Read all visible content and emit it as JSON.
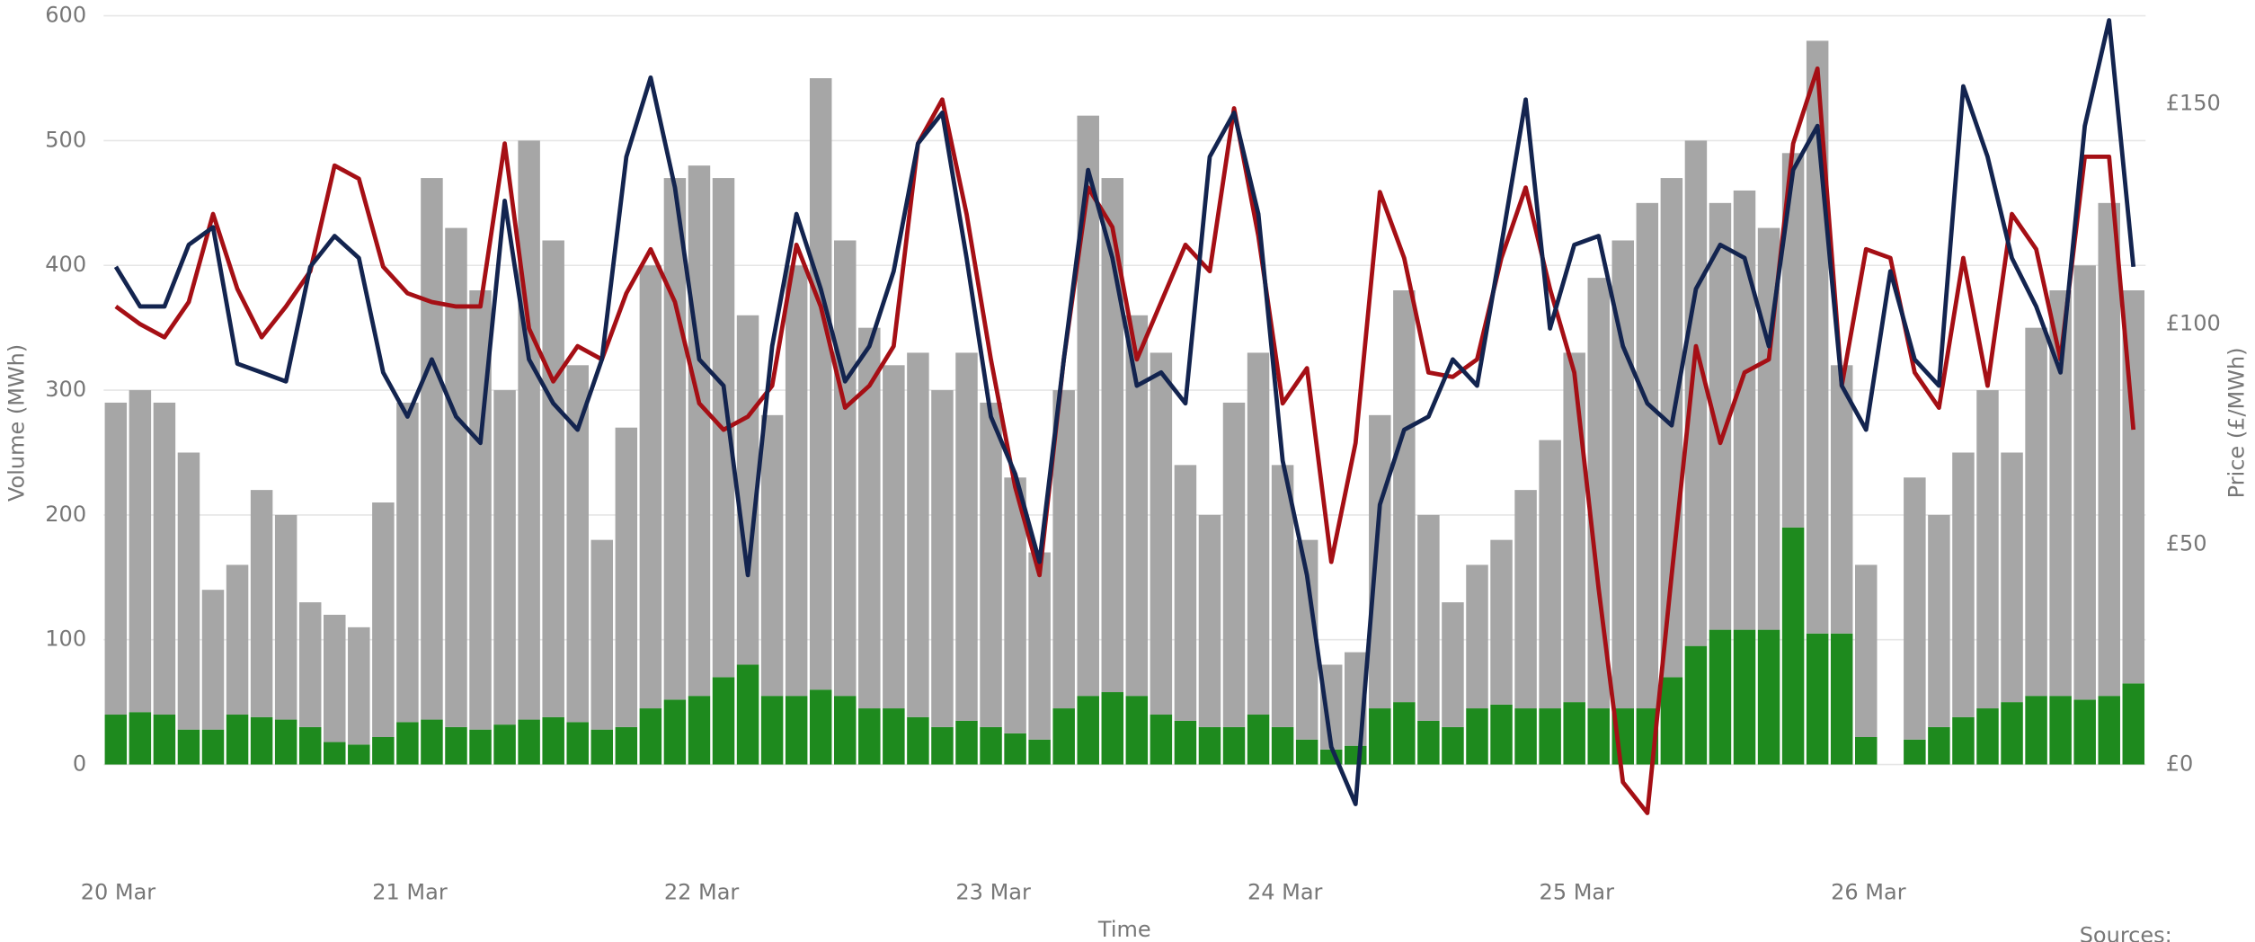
{
  "chart_data": {
    "type": "bar",
    "stacked": true,
    "x_label": "Time",
    "y_label": "Volume (MWh)",
    "y2_label": "Price (£/MWh)",
    "note": "Sources:",
    "categories": [
      "20 Mar",
      null,
      null,
      null,
      null,
      null,
      null,
      null,
      null,
      null,
      null,
      null,
      "21 Mar",
      null,
      null,
      null,
      null,
      null,
      null,
      null,
      null,
      null,
      null,
      null,
      "22 Mar",
      null,
      null,
      null,
      null,
      null,
      null,
      null,
      null,
      null,
      null,
      null,
      "23 Mar",
      null,
      null,
      null,
      null,
      null,
      null,
      null,
      null,
      null,
      null,
      null,
      "24 Mar",
      null,
      null,
      null,
      null,
      null,
      null,
      null,
      null,
      null,
      null,
      null,
      "25 Mar",
      null,
      null,
      null,
      null,
      null,
      null,
      null,
      null,
      null,
      null,
      null,
      "26 Mar",
      null,
      null,
      null,
      null,
      null,
      null,
      null,
      null,
      null,
      null,
      null
    ],
    "ylim": [
      -80,
      600
    ],
    "yticks": [
      0,
      100,
      200,
      300,
      400,
      500,
      600
    ],
    "y2lim": [
      -22.67,
      170
    ],
    "y2ticks": [
      {
        "value": 0,
        "label": "£0"
      },
      {
        "value": 50,
        "label": "£50"
      },
      {
        "value": 100,
        "label": "£100"
      },
      {
        "value": 150,
        "label": "£150"
      }
    ],
    "grid": true,
    "series": [
      {
        "type": "bar",
        "color": "#1e8a1e",
        "values": [
          40,
          42,
          40,
          28,
          28,
          40,
          38,
          36,
          30,
          18,
          16,
          22,
          34,
          36,
          30,
          28,
          32,
          36,
          38,
          34,
          28,
          30,
          45,
          52,
          55,
          70,
          80,
          55,
          55,
          60,
          55,
          45,
          45,
          38,
          30,
          35,
          30,
          25,
          20,
          45,
          55,
          58,
          55,
          40,
          35,
          30,
          30,
          40,
          30,
          20,
          12,
          15,
          45,
          50,
          35,
          30,
          45,
          48,
          45,
          45,
          50,
          45,
          45,
          45,
          70,
          95,
          108,
          108,
          108,
          190,
          105,
          105,
          22,
          null,
          20,
          30,
          38,
          45,
          50,
          55,
          55,
          52,
          55,
          65
        ]
      },
      {
        "type": "bar",
        "color": "#a6a6a6",
        "values": [
          250,
          258,
          250,
          222,
          112,
          120,
          182,
          164,
          100,
          102,
          94,
          188,
          256,
          434,
          400,
          352,
          268,
          464,
          382,
          286,
          152,
          240,
          355,
          418,
          425,
          400,
          280,
          225,
          345,
          490,
          365,
          305,
          275,
          292,
          270,
          295,
          260,
          205,
          150,
          255,
          465,
          412,
          305,
          290,
          205,
          170,
          260,
          290,
          210,
          160,
          68,
          75,
          235,
          330,
          165,
          100,
          115,
          132,
          175,
          215,
          280,
          345,
          375,
          405,
          400,
          405,
          342,
          352,
          322,
          300,
          475,
          215,
          138,
          null,
          210,
          170,
          212,
          255,
          200,
          295,
          325,
          348,
          395,
          315
        ]
      },
      {
        "type": "line",
        "axis": "y2",
        "color": "#a50f15",
        "values": [
          104,
          100,
          97,
          105,
          125,
          108,
          97,
          104,
          112,
          136,
          133,
          113,
          107,
          105,
          104,
          104,
          141,
          99,
          87,
          95,
          92,
          107,
          117,
          105,
          82,
          76,
          79,
          86,
          118,
          104,
          81,
          86,
          95,
          141,
          151,
          125,
          92,
          63,
          43,
          92,
          131,
          122,
          92,
          105,
          118,
          112,
          149,
          120,
          82,
          90,
          46,
          73,
          130,
          115,
          89,
          88,
          92,
          115,
          131,
          108,
          89,
          40,
          -4,
          -11,
          43,
          95,
          73,
          89,
          92,
          141,
          158,
          86,
          117,
          115,
          89,
          81,
          115,
          86,
          125,
          117,
          92,
          138,
          138,
          76
        ]
      },
      {
        "type": "line",
        "axis": "y2",
        "color": "#13244f",
        "values": [
          113,
          104,
          104,
          118,
          122,
          91,
          89,
          87,
          113,
          120,
          115,
          89,
          79,
          92,
          79,
          73,
          128,
          92,
          82,
          76,
          92,
          138,
          156,
          131,
          92,
          86,
          43,
          95,
          125,
          108,
          87,
          95,
          112,
          141,
          148,
          115,
          79,
          66,
          46,
          92,
          135,
          115,
          86,
          89,
          82,
          138,
          148,
          125,
          69,
          43,
          4,
          -9,
          59,
          76,
          79,
          92,
          86,
          118,
          151,
          99,
          118,
          120,
          95,
          82,
          77,
          108,
          118,
          115,
          95,
          135,
          145,
          86,
          76,
          112,
          92,
          86,
          154,
          138,
          115,
          104,
          89,
          145,
          169,
          113
        ]
      }
    ]
  }
}
